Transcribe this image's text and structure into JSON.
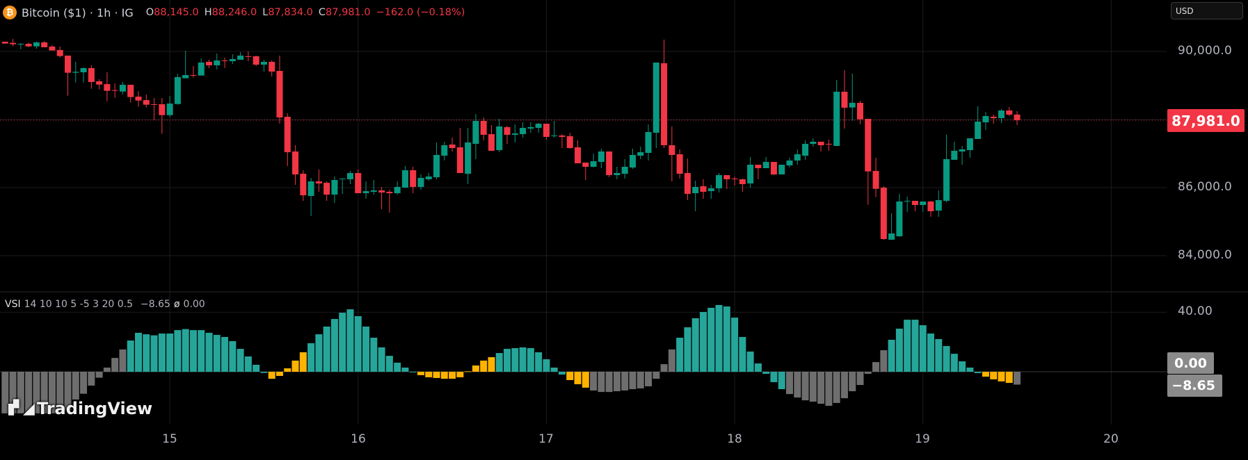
{
  "header": {
    "symbol_icon": "bitcoin-icon",
    "title": "Bitcoin ($1) · 1h · IG",
    "open_key": "O",
    "open": "88,145.0",
    "high_key": "H",
    "high": "88,246.0",
    "low_key": "L",
    "low": "87,834.0",
    "close_key": "C",
    "close": "87,981.0",
    "change": "−162.0 (−0.18%)"
  },
  "currency_button": "USD",
  "price_axis": {
    "labels": [
      "90,000.0",
      "86,000.0",
      "84,000.0"
    ],
    "last_price": "87,981.0"
  },
  "indicator": {
    "name": "VSI",
    "params": "14 10 10 5 -5 3 20 0.5",
    "value": "−8.65",
    "symbol": "ø",
    "value2": "0.00",
    "axis_label": "40.00",
    "zero_label": "0.00",
    "last_label": "−8.65"
  },
  "time_axis": [
    "15",
    "16",
    "17",
    "18",
    "19",
    "20"
  ],
  "logo": "TradingView",
  "colors": {
    "up": "#089981",
    "down": "#f23645",
    "hist_teal": "#26a69a",
    "hist_amber": "#ffb300",
    "hist_gray": "#6e6e6e",
    "background": "#000000",
    "grid": "#1c1c1c"
  },
  "chart_data": [
    {
      "type": "candlestick",
      "interval": "1h",
      "first_bar_index_of_day_15": 21,
      "bars_per_day": 24,
      "ylim": [
        82800,
        91200
      ],
      "y_ticks": [
        84000,
        86000,
        88000,
        90000
      ],
      "x_ticks": [
        "15",
        "16",
        "17",
        "18",
        "19",
        "20"
      ],
      "last_price": 87981,
      "ohlc": [
        [
          90285,
          90290,
          90225,
          90231
        ],
        [
          90251,
          90367,
          90149,
          90210
        ],
        [
          90210,
          90244,
          90061,
          90224
        ],
        [
          90224,
          90258,
          90122,
          90149
        ],
        [
          90149,
          90292,
          90081,
          90265
        ],
        [
          90265,
          90306,
          90122,
          90122
        ],
        [
          90143,
          90183,
          90027,
          90027
        ],
        [
          90041,
          90143,
          89823,
          89864
        ],
        [
          89877,
          89877,
          88700,
          89374
        ],
        [
          89374,
          89694,
          89088,
          89401
        ],
        [
          89388,
          89530,
          89088,
          89510
        ],
        [
          89510,
          89591,
          88904,
          89102
        ],
        [
          89122,
          89183,
          88884,
          89027
        ],
        [
          89040,
          89387,
          88537,
          88843
        ],
        [
          88863,
          89061,
          88639,
          88843
        ],
        [
          88823,
          89102,
          88741,
          89020
        ],
        [
          89020,
          89020,
          88496,
          88660
        ],
        [
          88673,
          88836,
          88374,
          88558
        ],
        [
          88571,
          88734,
          88353,
          88435
        ],
        [
          88449,
          88632,
          87986,
          88435
        ],
        [
          88449,
          88632,
          87578,
          88129
        ],
        [
          88129,
          88694,
          88068,
          88469
        ],
        [
          88455,
          89347,
          88435,
          89245
        ],
        [
          89211,
          90020,
          89211,
          89306
        ],
        [
          89306,
          89571,
          89231,
          89292
        ],
        [
          89292,
          89796,
          89292,
          89673
        ],
        [
          89694,
          89755,
          89510,
          89592
        ],
        [
          89592,
          89939,
          89469,
          89734
        ],
        [
          89734,
          89816,
          89510,
          89721
        ],
        [
          89714,
          89918,
          89632,
          89775
        ],
        [
          89755,
          89979,
          89755,
          89877
        ],
        [
          89857,
          90000,
          89714,
          89843
        ],
        [
          89857,
          89877,
          89571,
          89612
        ],
        [
          89612,
          89755,
          89408,
          89694
        ],
        [
          89694,
          89734,
          89265,
          89408
        ],
        [
          89428,
          89877,
          87884,
          88061
        ],
        [
          88081,
          88183,
          86632,
          87040
        ],
        [
          87061,
          87245,
          86081,
          86387
        ],
        [
          86408,
          86510,
          85612,
          85775
        ],
        [
          85755,
          86285,
          85163,
          86183
        ],
        [
          86183,
          86530,
          85877,
          86122
        ],
        [
          86142,
          86183,
          85612,
          85795
        ],
        [
          85795,
          86326,
          85551,
          86224
        ],
        [
          86245,
          86265,
          85816,
          86265
        ],
        [
          86245,
          86490,
          86102,
          86428
        ],
        [
          86428,
          86530,
          85836,
          85836
        ],
        [
          85836,
          86183,
          85673,
          85897
        ],
        [
          85877,
          86224,
          85795,
          85918
        ],
        [
          85918,
          86020,
          85367,
          85857
        ],
        [
          85877,
          85938,
          85265,
          85836
        ],
        [
          85836,
          86183,
          85795,
          86020
        ],
        [
          86000,
          86632,
          86000,
          86510
        ],
        [
          86510,
          86612,
          85836,
          86020
        ],
        [
          86020,
          86388,
          85938,
          86285
        ],
        [
          86245,
          86428,
          86204,
          86326
        ],
        [
          86306,
          87326,
          86245,
          86959
        ],
        [
          86938,
          87346,
          86796,
          87245
        ],
        [
          87265,
          87469,
          87061,
          87163
        ],
        [
          87183,
          87755,
          86428,
          86428
        ],
        [
          86408,
          87755,
          86102,
          87326
        ],
        [
          87286,
          88163,
          86836,
          87959
        ],
        [
          87959,
          88061,
          87387,
          87551
        ],
        [
          87571,
          87836,
          87081,
          87081
        ],
        [
          87102,
          88020,
          87040,
          87796
        ],
        [
          87775,
          87816,
          87285,
          87551
        ],
        [
          87551,
          87857,
          87326,
          87592
        ],
        [
          87571,
          87918,
          87469,
          87755
        ],
        [
          87734,
          87918,
          87612,
          87775
        ],
        [
          87755,
          87898,
          87612,
          87877
        ],
        [
          87877,
          87877,
          87408,
          87489
        ],
        [
          87510,
          87959,
          87469,
          87530
        ],
        [
          87530,
          87571,
          87163,
          87489
        ],
        [
          87510,
          87612,
          87143,
          87163
        ],
        [
          87183,
          87388,
          86714,
          86714
        ],
        [
          86734,
          86734,
          86224,
          86612
        ],
        [
          86612,
          87000,
          86591,
          86775
        ],
        [
          86755,
          87143,
          86571,
          87061
        ],
        [
          87061,
          87061,
          86306,
          86367
        ],
        [
          86367,
          86612,
          86245,
          86428
        ],
        [
          86408,
          86836,
          86265,
          86612
        ],
        [
          86591,
          87143,
          86551,
          86959
        ],
        [
          86938,
          87204,
          86836,
          87040
        ],
        [
          87020,
          87857,
          86796,
          87632
        ],
        [
          87612,
          89673,
          87163,
          89673
        ],
        [
          89653,
          90347,
          87163,
          87245
        ],
        [
          87245,
          87796,
          86183,
          86959
        ],
        [
          86979,
          87122,
          86265,
          86408
        ],
        [
          86428,
          86857,
          85632,
          85816
        ],
        [
          85836,
          86204,
          85306,
          86020
        ],
        [
          86040,
          86245,
          85673,
          85877
        ],
        [
          85897,
          86081,
          85673,
          85979
        ],
        [
          85979,
          86428,
          85857,
          86367
        ],
        [
          86367,
          86367,
          85959,
          86245
        ],
        [
          86265,
          86326,
          86061,
          86251
        ],
        [
          86245,
          86265,
          85877,
          86102
        ],
        [
          86122,
          86898,
          86000,
          86673
        ],
        [
          86673,
          86673,
          86245,
          86571
        ],
        [
          86571,
          86898,
          86571,
          86755
        ],
        [
          86755,
          86755,
          86367,
          86387
        ],
        [
          86387,
          86673,
          86387,
          86673
        ],
        [
          86653,
          86877,
          86591,
          86796
        ],
        [
          86796,
          87122,
          86673,
          86979
        ],
        [
          86938,
          87387,
          86816,
          87285
        ],
        [
          87285,
          87449,
          87204,
          87347
        ],
        [
          87347,
          87347,
          87061,
          87245
        ],
        [
          87285,
          87408,
          87081,
          87271
        ],
        [
          87224,
          89163,
          87224,
          88816
        ],
        [
          88816,
          89449,
          87734,
          88347
        ],
        [
          88354,
          89347,
          87966,
          88490
        ],
        [
          88490,
          88551,
          87864,
          88007
        ],
        [
          88020,
          88020,
          85496,
          86476
        ],
        [
          86490,
          86878,
          85721,
          85966
        ],
        [
          86000,
          86041,
          84469,
          84490
        ],
        [
          84469,
          85245,
          84469,
          84653
        ],
        [
          84571,
          85816,
          84551,
          85592
        ],
        [
          85599,
          85735,
          85286,
          85612
        ],
        [
          85612,
          85612,
          85306,
          85490
        ],
        [
          85490,
          85592,
          85286,
          85592
        ],
        [
          85592,
          85612,
          85143,
          85306
        ],
        [
          85326,
          85918,
          85143,
          85633
        ],
        [
          85612,
          87551,
          85571,
          86837
        ],
        [
          86816,
          87347,
          86816,
          87082
        ],
        [
          87061,
          87224,
          86673,
          87122
        ],
        [
          87102,
          87449,
          86878,
          87449
        ],
        [
          87429,
          88388,
          87429,
          87939
        ],
        [
          87918,
          88224,
          87694,
          88102
        ],
        [
          88082,
          88143,
          87877,
          88041
        ],
        [
          88041,
          88306,
          87898,
          88265
        ],
        [
          88265,
          88367,
          88102,
          88143
        ],
        [
          88145,
          88246,
          87834,
          87981
        ]
      ]
    },
    {
      "type": "bar",
      "name": "VSI",
      "ylim": [
        -35,
        50
      ],
      "y_ticks": [
        0,
        40
      ],
      "values": [
        -28,
        -28,
        -28,
        -28,
        -28,
        -28,
        -28,
        -27,
        -26,
        -18.7,
        -14.8,
        -9.3,
        -4,
        2.8,
        9.3,
        15,
        21,
        26.2,
        25.2,
        24.5,
        25.7,
        25.7,
        28,
        28.7,
        28,
        28,
        26.2,
        24.8,
        23.4,
        20.6,
        15.4,
        10.3,
        4.7,
        -0.8,
        -4.7,
        -2.8,
        2.3,
        7.5,
        13.1,
        19.2,
        25.2,
        30.4,
        35.5,
        39.7,
        42,
        37.4,
        30.4,
        22.9,
        16.4,
        10.7,
        6.1,
        2.8,
        -0.3,
        -2.3,
        -3.7,
        -4.2,
        -4.7,
        -4.7,
        -3.7,
        0.3,
        4.2,
        7.5,
        9.8,
        12.6,
        15.4,
        15.9,
        16.4,
        15.9,
        13.1,
        8.4,
        2.8,
        -1.9,
        -5.6,
        -8.4,
        -10.7,
        -12.6,
        -13.6,
        -13.6,
        -13.1,
        -12.6,
        -11.7,
        -11.2,
        -9.8,
        -4.7,
        5.1,
        15,
        22.9,
        29.9,
        36,
        40.2,
        43,
        44.9,
        43.9,
        36.4,
        23.4,
        13.6,
        5.6,
        -1.4,
        -7,
        -11.7,
        -15,
        -17.3,
        -19.2,
        -20.1,
        -21.5,
        -22.9,
        -21,
        -17.8,
        -13.1,
        -8.9,
        -1.4,
        6.5,
        14.5,
        21.5,
        29,
        35,
        35,
        31.3,
        25.7,
        22,
        17.3,
        12.1,
        7,
        2.8,
        -0.9,
        -3.3,
        -5.1,
        -6.5,
        -7.5,
        -8.65
      ],
      "colors": [
        "gray",
        "gray",
        "gray",
        "gray",
        "gray",
        "gray",
        "gray",
        "gray",
        "gray",
        "gray",
        "gray",
        "gray",
        "gray",
        "gray",
        "gray",
        "gray",
        "teal",
        "teal",
        "teal",
        "teal",
        "teal",
        "teal",
        "teal",
        "teal",
        "teal",
        "teal",
        "teal",
        "teal",
        "teal",
        "teal",
        "teal",
        "teal",
        "teal",
        "teal",
        "amber",
        "amber",
        "amber",
        "amber",
        "amber",
        "teal",
        "teal",
        "teal",
        "teal",
        "teal",
        "teal",
        "teal",
        "teal",
        "teal",
        "teal",
        "teal",
        "teal",
        "teal",
        "teal",
        "amber",
        "amber",
        "amber",
        "amber",
        "amber",
        "amber",
        "amber",
        "amber",
        "amber",
        "amber",
        "teal",
        "teal",
        "teal",
        "teal",
        "teal",
        "teal",
        "teal",
        "teal",
        "teal",
        "amber",
        "amber",
        "amber",
        "gray",
        "gray",
        "gray",
        "gray",
        "gray",
        "gray",
        "gray",
        "gray",
        "gray",
        "gray",
        "gray",
        "teal",
        "teal",
        "teal",
        "teal",
        "teal",
        "teal",
        "teal",
        "teal",
        "teal",
        "teal",
        "teal",
        "teal",
        "teal",
        "teal",
        "gray",
        "gray",
        "gray",
        "gray",
        "gray",
        "gray",
        "gray",
        "gray",
        "gray",
        "gray",
        "gray",
        "gray",
        "gray",
        "teal",
        "teal",
        "teal",
        "teal",
        "teal",
        "teal",
        "teal",
        "teal",
        "teal",
        "teal",
        "teal",
        "teal",
        "amber",
        "amber",
        "amber",
        "amber",
        "gray"
      ]
    }
  ]
}
